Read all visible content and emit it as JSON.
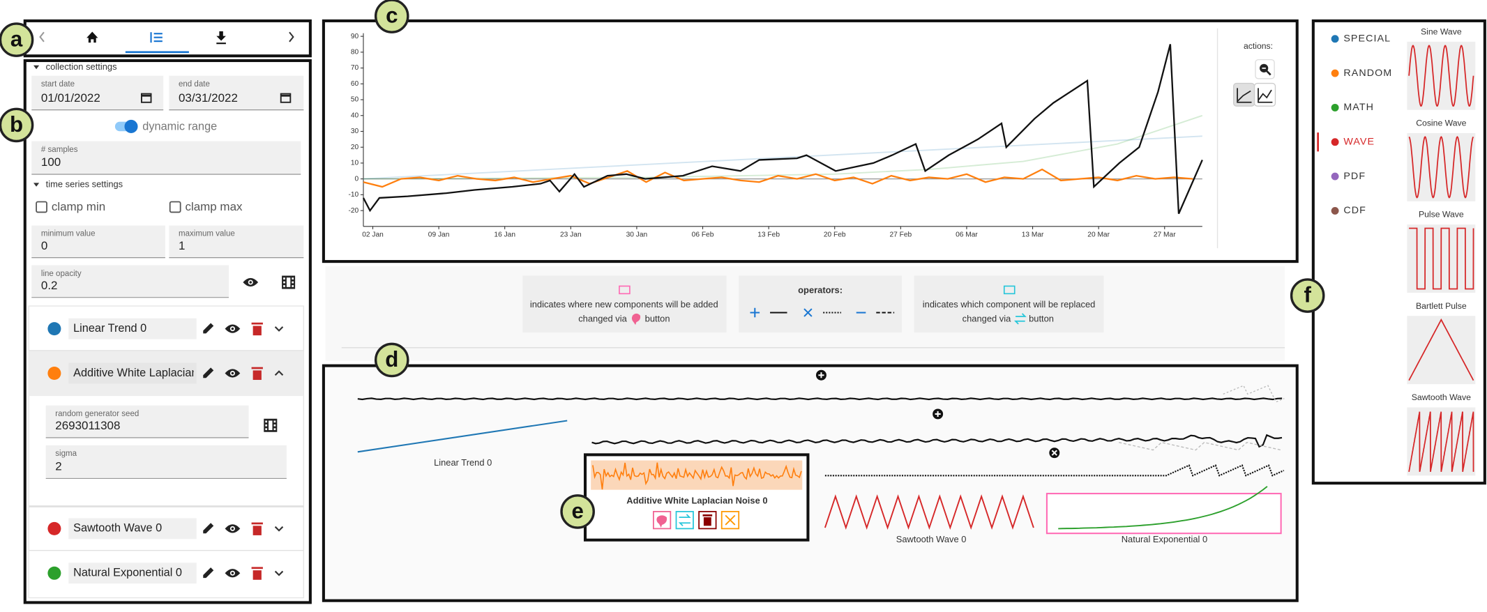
{
  "callouts": [
    "a",
    "b",
    "c",
    "d",
    "e",
    "f"
  ],
  "sidebar": {
    "collection_settings": {
      "title": "collection settings",
      "start_date_label": "start date",
      "start_date": "01/01/2022",
      "end_date_label": "end date",
      "end_date": "03/31/2022",
      "dynamic_range": "dynamic range",
      "samples_label": "# samples",
      "samples": 100
    },
    "time_series_settings": {
      "title": "time series settings",
      "clamp_min": "clamp min",
      "clamp_max": "clamp max",
      "minimum_value_label": "minimum value",
      "minimum_value": 0,
      "maximum_value_label": "maximum value",
      "maximum_value": 1,
      "line_opacity_label": "line opacity",
      "line_opacity": 0.2
    },
    "components": [
      {
        "name": "Linear Trend 0",
        "color": "#1f77b4"
      },
      {
        "name": "Additive White Laplacian Noise 0",
        "color": "#ff7f0e",
        "expanded": true
      },
      {
        "name": "Sawtooth Wave 0",
        "color": "#d62728"
      },
      {
        "name": "Natural Exponential 0",
        "color": "#2ca02c"
      }
    ],
    "details": {
      "seed_label": "random generator seed",
      "seed": 2693011308,
      "sigma_label": "sigma",
      "sigma": 2
    }
  },
  "chart_data": {
    "type": "line",
    "xlim": [
      0,
      89
    ],
    "ylim": [
      -30,
      92
    ],
    "xticks": [
      {
        "value": 1,
        "label": "02 Jan"
      },
      {
        "value": 8,
        "label": "09 Jan"
      },
      {
        "value": 15,
        "label": "16 Jan"
      },
      {
        "value": 22,
        "label": "23 Jan"
      },
      {
        "value": 29,
        "label": "30 Jan"
      },
      {
        "value": 36,
        "label": "06 Feb"
      },
      {
        "value": 43,
        "label": "13 Feb"
      },
      {
        "value": 50,
        "label": "20 Feb"
      },
      {
        "value": 57,
        "label": "27 Feb"
      },
      {
        "value": 64,
        "label": "06 Mar"
      },
      {
        "value": 71,
        "label": "13 Mar"
      },
      {
        "value": 78,
        "label": "20 Mar"
      },
      {
        "value": 85,
        "label": "27 Mar"
      }
    ],
    "yticks": [
      -20,
      -10,
      0,
      10,
      20,
      30,
      40,
      50,
      60,
      70,
      80,
      90
    ],
    "series": [
      {
        "color": "#1f77b4",
        "faded": true,
        "x": [
          0,
          89
        ],
        "values": [
          0,
          27
        ]
      },
      {
        "color": "#2ca02c",
        "faded": true,
        "x": [
          0,
          30,
          50,
          60,
          70,
          80,
          89
        ],
        "values": [
          0,
          1,
          3,
          6,
          11,
          22,
          40
        ]
      },
      {
        "color": "#ff7f0e",
        "faded": false,
        "x": [
          0,
          2,
          4,
          6,
          8,
          10,
          12,
          14,
          16,
          18,
          20,
          22,
          24,
          26,
          28,
          30,
          32,
          34,
          36,
          38,
          40,
          42,
          44,
          46,
          48,
          50,
          52,
          54,
          56,
          58,
          60,
          62,
          64,
          66,
          68,
          70,
          72,
          74,
          76,
          78,
          80,
          82,
          84,
          86,
          88
        ],
        "values": [
          -2,
          -5,
          0,
          1,
          -1,
          2,
          0,
          -1,
          1,
          -2,
          0,
          2,
          -3,
          1,
          5,
          -2,
          4,
          -1,
          0,
          1,
          -1,
          -2,
          2,
          0,
          3,
          -1,
          1,
          -3,
          2,
          -1,
          1,
          0,
          3,
          -2,
          1,
          0,
          6,
          -1,
          0,
          1,
          -1,
          2,
          0,
          1,
          0
        ]
      },
      {
        "color": "#111111",
        "faded": false,
        "x": [
          0,
          0.7,
          1.7,
          4.7,
          8.8,
          11.8,
          15.8,
          18.8,
          19.8,
          20.8,
          22.4,
          23.4,
          25.9,
          27.9,
          29.9,
          33.9,
          37,
          40,
          42,
          46,
          47,
          50.1,
          54.1,
          56.1,
          58.6,
          59.6,
          62.1,
          65.2,
          67.7,
          68.2,
          71.2,
          73.2,
          76.8,
          77.5,
          80.2,
          82.3,
          84.3,
          85.6,
          86.5,
          89
        ],
        "values": [
          -12,
          -20,
          -12,
          -11,
          -9,
          -7,
          -5,
          -3,
          -1,
          -8,
          3,
          -5,
          2,
          3,
          0,
          2,
          8,
          5,
          12,
          13,
          15,
          5,
          10,
          15,
          22,
          5,
          15,
          25,
          35,
          20,
          38,
          48,
          62,
          -5,
          10,
          20,
          55,
          85,
          -22,
          12
        ]
      }
    ]
  },
  "chart_panel": {
    "actions": "actions:"
  },
  "guide": {
    "added_text": "indicates where new components will be added",
    "added_changed_via": "changed via",
    "added_button": "button",
    "operators": "operators:",
    "replaced_text": "indicates which component will be replaced",
    "replaced_changed_via": "changed via",
    "replaced_button": "button"
  },
  "composition": {
    "linear_trend": "Linear Trend 0",
    "noise": "Additive White Laplacian Noise 0",
    "sawtooth": "Sawtooth Wave 0",
    "exponential": "Natural Exponential 0"
  },
  "library": {
    "categories": [
      {
        "name": "SPECIAL",
        "color": "#1f77b4"
      },
      {
        "name": "RANDOM",
        "color": "#ff7f0e"
      },
      {
        "name": "MATH",
        "color": "#2ca02c"
      },
      {
        "name": "WAVE",
        "color": "#d62728",
        "selected": true
      },
      {
        "name": "PDF",
        "color": "#9467bd"
      },
      {
        "name": "CDF",
        "color": "#8c564b"
      }
    ],
    "items": [
      "Sine Wave",
      "Cosine Wave",
      "Pulse Wave",
      "Bartlett Pulse",
      "Sawtooth Wave"
    ]
  }
}
